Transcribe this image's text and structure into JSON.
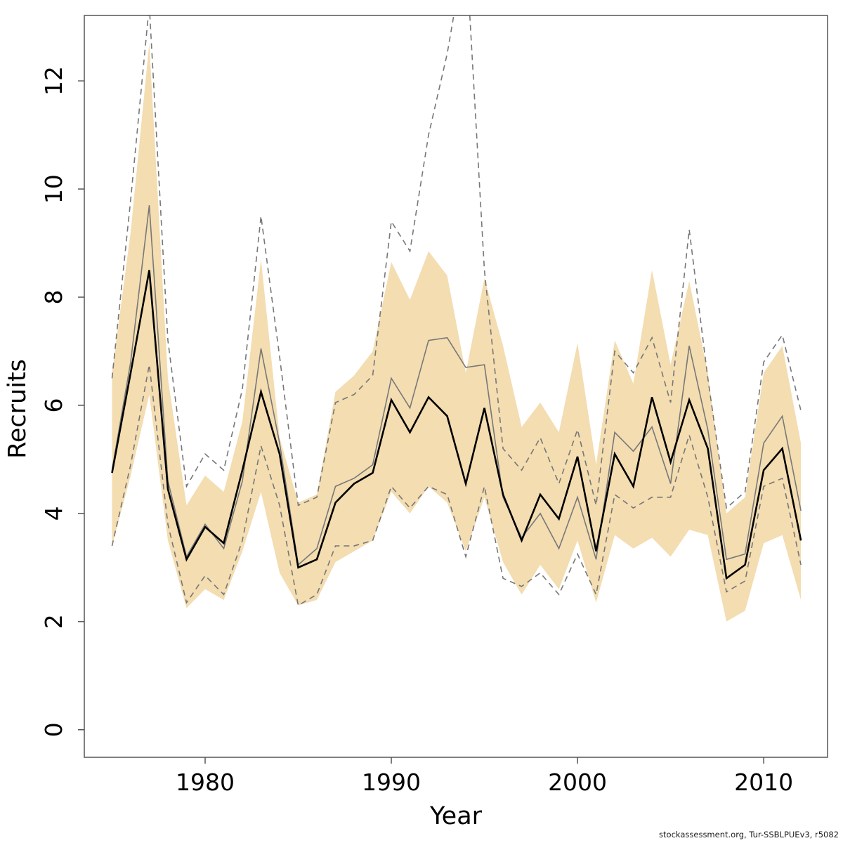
{
  "watermark": "stockassessment.org, Tur-SSBLPUEv3, r5082",
  "chart_data": {
    "type": "line",
    "xlabel": "Year",
    "ylabel": "Recruits",
    "grid": false,
    "legend_position": "none",
    "xlim": [
      1973.51,
      2013.43
    ],
    "ylim": [
      -0.51,
      13.21
    ],
    "x_tick_values": [
      1980,
      1990,
      2000,
      2010
    ],
    "x_tick_labels": [
      "1980",
      "1990",
      "2000",
      "2010"
    ],
    "y_tick_values": [
      0,
      2,
      4,
      6,
      8,
      10,
      12
    ],
    "y_tick_labels": [
      "0",
      "2",
      "4",
      "6",
      "8",
      "10",
      "12"
    ],
    "years": [
      1975,
      1976,
      1977,
      1978,
      1979,
      1980,
      1981,
      1982,
      1983,
      1984,
      1985,
      1986,
      1987,
      1988,
      1989,
      1990,
      1991,
      1992,
      1993,
      1994,
      1995,
      1996,
      1997,
      1998,
      1999,
      2000,
      2001,
      2002,
      2003,
      2004,
      2005,
      2006,
      2007,
      2008,
      2009,
      2010,
      2011,
      2012
    ],
    "band": {
      "name": "estimate-confidence-band",
      "color": "#f3ddb1",
      "lower": [
        3.4,
        4.7,
        6.2,
        3.5,
        2.25,
        2.6,
        2.4,
        3.3,
        4.4,
        2.9,
        2.3,
        2.4,
        3.1,
        3.3,
        3.5,
        4.4,
        4.0,
        4.5,
        4.2,
        3.3,
        4.3,
        3.1,
        2.5,
        3.05,
        2.6,
        3.5,
        2.35,
        3.6,
        3.35,
        3.55,
        3.2,
        3.7,
        3.6,
        2.0,
        2.2,
        3.45,
        3.6,
        2.4
      ],
      "upper": [
        6.6,
        9.2,
        12.7,
        6.5,
        4.15,
        4.7,
        4.4,
        5.7,
        8.7,
        5.4,
        4.2,
        4.35,
        6.25,
        6.55,
        7.0,
        8.65,
        7.95,
        8.85,
        8.4,
        6.6,
        8.35,
        7.1,
        5.6,
        6.05,
        5.5,
        7.15,
        4.9,
        7.2,
        6.4,
        8.5,
        6.75,
        8.3,
        6.6,
        4.0,
        4.3,
        6.6,
        7.1,
        5.3
      ]
    },
    "series": [
      {
        "name": "reference-ci-upper",
        "style": "dashed",
        "color": "#777777",
        "width": 1.6,
        "values": [
          6.5,
          9.8,
          13.4,
          7.2,
          4.5,
          5.1,
          4.8,
          6.3,
          9.5,
          6.9,
          4.15,
          4.3,
          6.05,
          6.2,
          6.55,
          9.4,
          8.85,
          11.0,
          12.5,
          14.5,
          8.5,
          5.2,
          4.8,
          5.4,
          4.55,
          5.55,
          4.15,
          7.0,
          6.6,
          7.25,
          6.05,
          9.25,
          6.5,
          4.1,
          4.4,
          6.8,
          7.3,
          5.9
        ]
      },
      {
        "name": "reference-ci-lower",
        "style": "dashed",
        "color": "#777777",
        "width": 1.6,
        "values": [
          3.4,
          4.9,
          6.75,
          3.8,
          2.35,
          2.85,
          2.5,
          3.5,
          5.25,
          4.15,
          2.3,
          2.5,
          3.4,
          3.4,
          3.5,
          4.5,
          4.1,
          4.5,
          4.35,
          3.2,
          4.5,
          2.8,
          2.65,
          2.9,
          2.5,
          3.25,
          2.5,
          4.35,
          4.1,
          4.3,
          4.3,
          5.45,
          4.3,
          2.55,
          2.75,
          4.5,
          4.65,
          3.05
        ]
      },
      {
        "name": "reference-run",
        "style": "solid",
        "color": "#787878",
        "width": 1.6,
        "values": [
          4.8,
          6.8,
          9.7,
          4.6,
          3.2,
          3.8,
          3.35,
          4.6,
          7.05,
          5.3,
          3.05,
          3.35,
          4.5,
          4.65,
          4.9,
          6.5,
          5.95,
          7.2,
          7.25,
          6.7,
          6.75,
          4.3,
          3.55,
          4.0,
          3.35,
          4.3,
          3.15,
          5.5,
          5.15,
          5.6,
          4.55,
          7.1,
          5.55,
          3.15,
          3.25,
          5.3,
          5.8,
          4.05
        ]
      },
      {
        "name": "recruits-estimate",
        "style": "solid",
        "color": "#000000",
        "width": 2.6,
        "values": [
          4.75,
          6.6,
          8.5,
          4.45,
          3.15,
          3.75,
          3.45,
          4.8,
          6.25,
          5.1,
          3.0,
          3.15,
          4.2,
          4.55,
          4.75,
          6.1,
          5.5,
          6.15,
          5.8,
          4.55,
          5.95,
          4.35,
          3.5,
          4.35,
          3.9,
          5.05,
          3.3,
          5.1,
          4.5,
          6.15,
          4.95,
          6.1,
          5.2,
          2.8,
          3.05,
          4.8,
          5.2,
          3.5
        ]
      }
    ]
  }
}
